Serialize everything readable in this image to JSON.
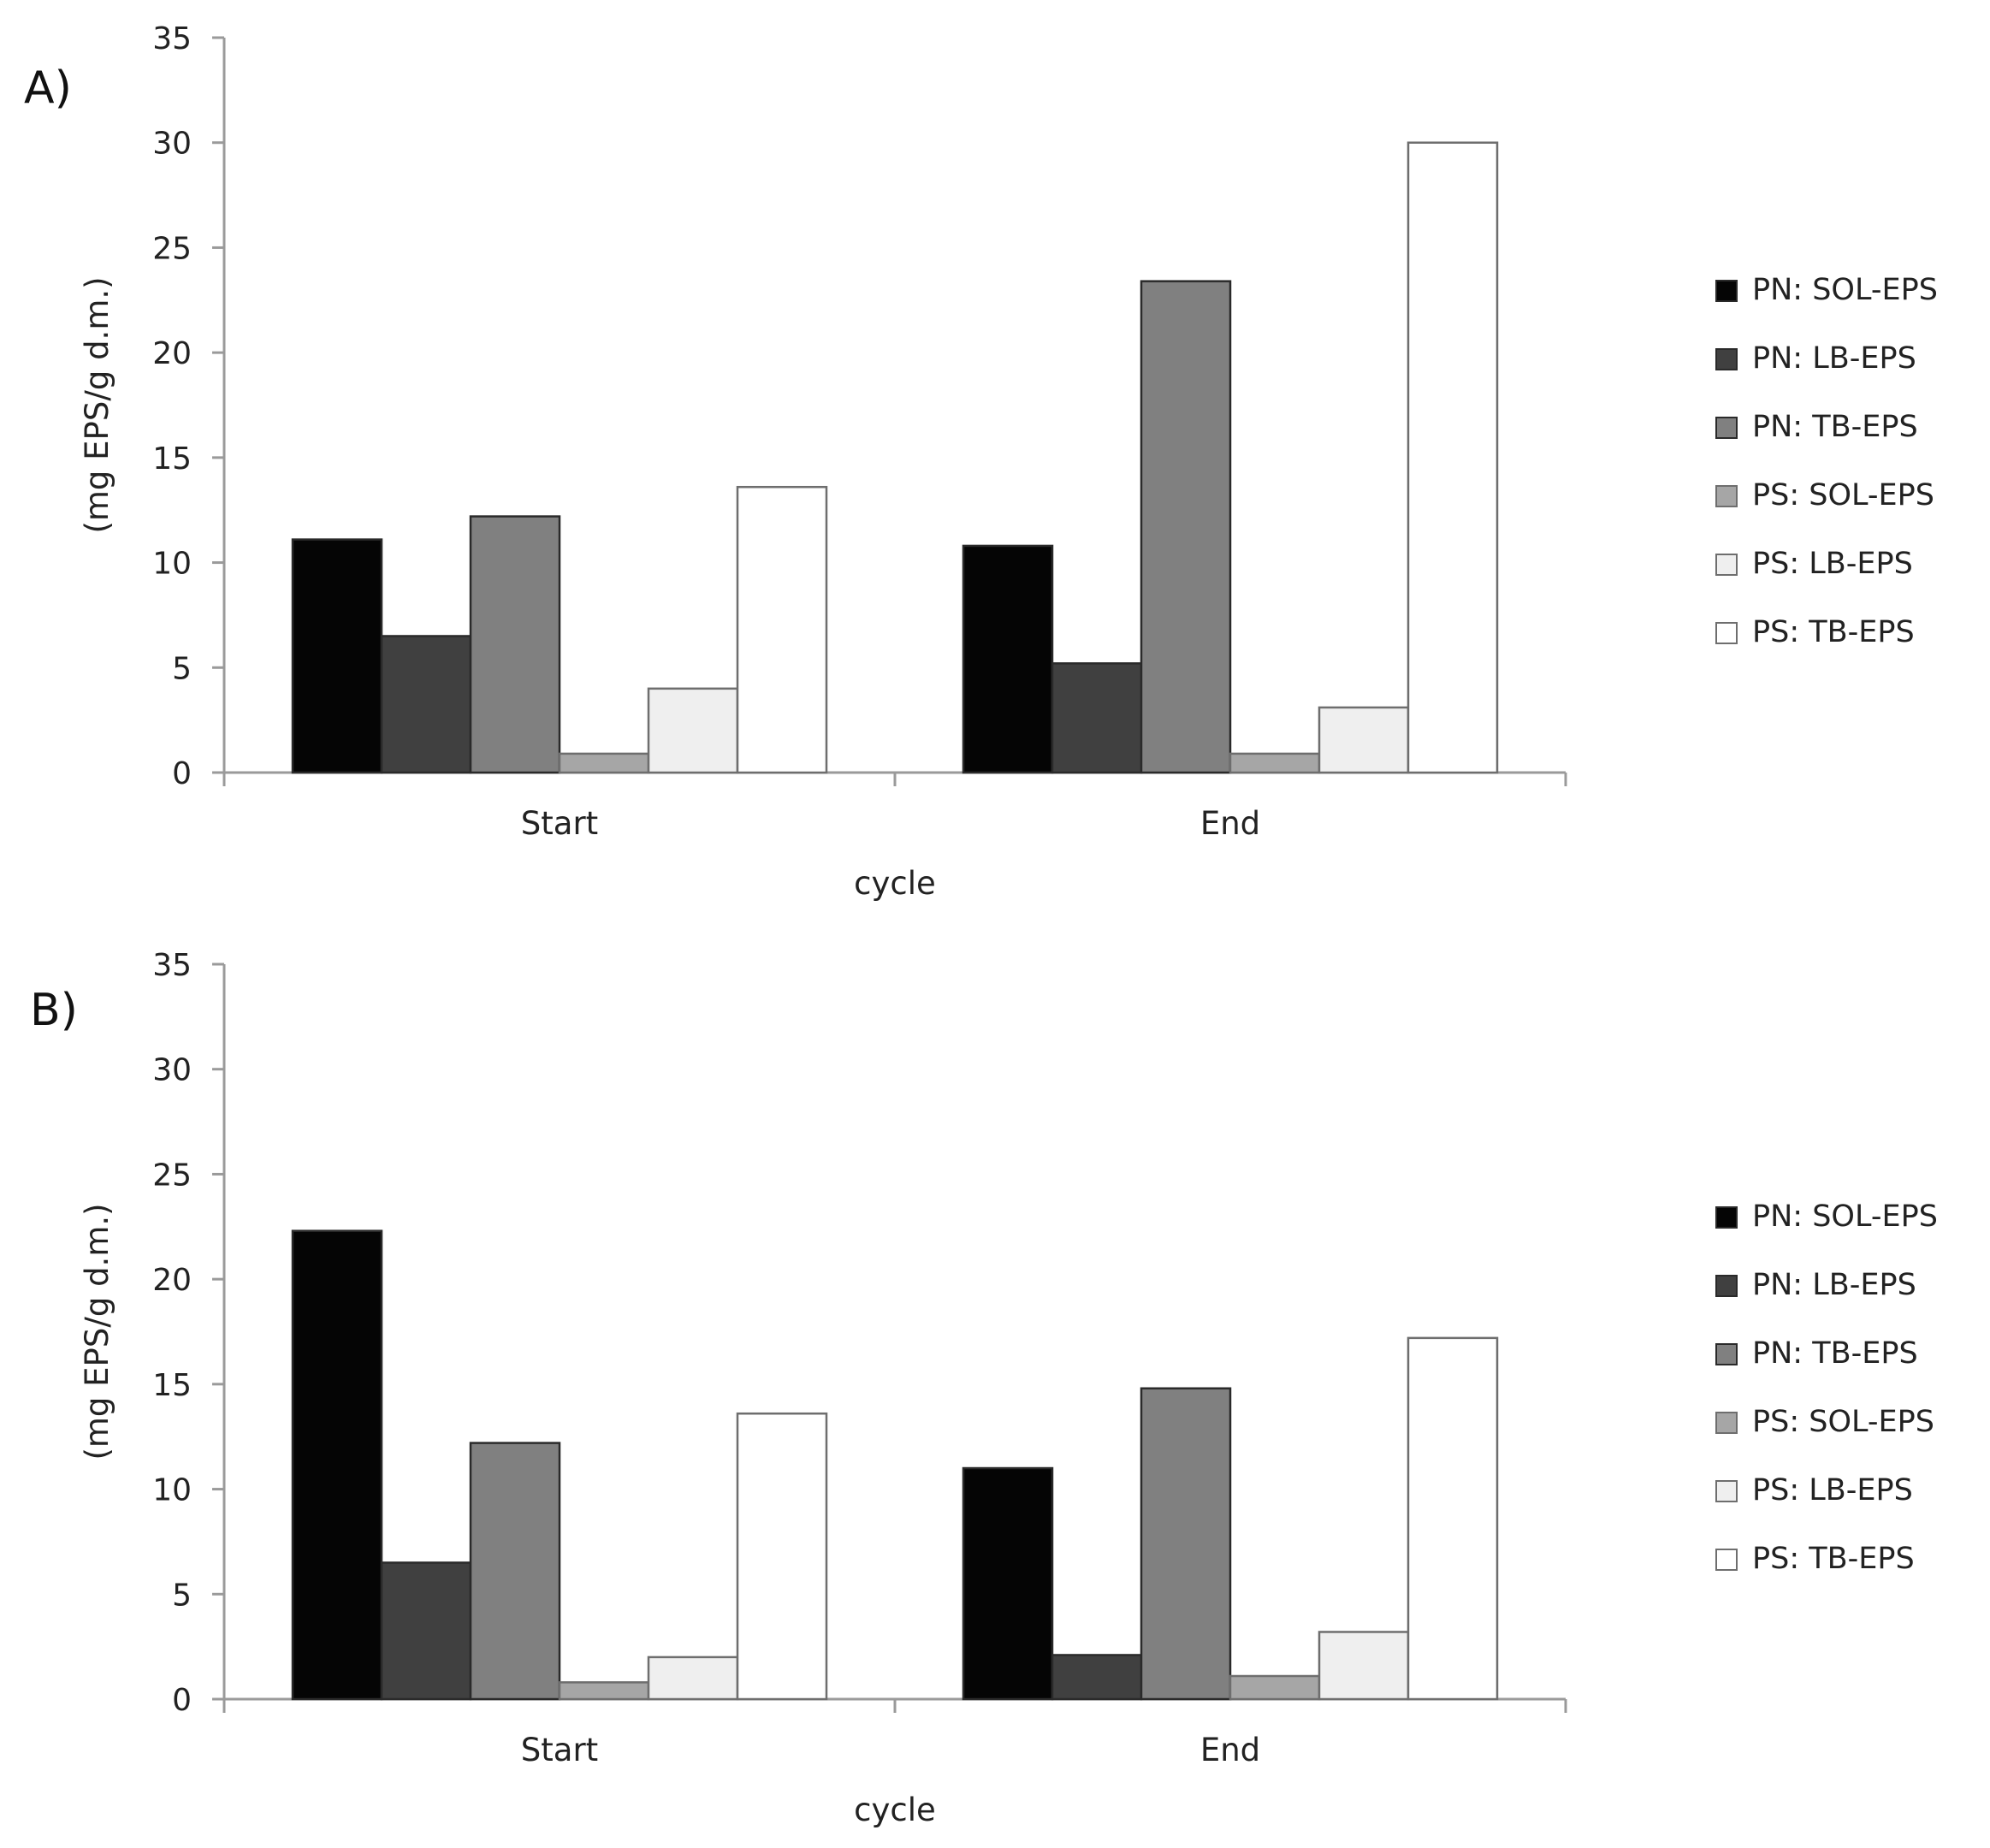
{
  "figure": {
    "series_names": [
      "PN: SOL-EPS",
      "PN: LB-EPS",
      "PN: TB-EPS",
      "PS: SOL-EPS",
      "PS: LB-EPS",
      "PS: TB-EPS"
    ],
    "series_colors": [
      "#050505",
      "#404040",
      "#808080",
      "#a6a6a6",
      "#efefef",
      "#ffffff"
    ]
  },
  "chart_data": [
    {
      "type": "bar",
      "panel_label": "A)",
      "categories": [
        "Start",
        "End"
      ],
      "xlabel": "cycle",
      "ylabel": "(mg EPS/g d.m.)",
      "ylim": [
        0,
        35
      ],
      "yticks": [
        0,
        5,
        10,
        15,
        20,
        25,
        30,
        35
      ],
      "legend_position": "right",
      "series": [
        {
          "name": "PN: SOL-EPS",
          "values": [
            11.1,
            10.8
          ]
        },
        {
          "name": "PN: LB-EPS",
          "values": [
            6.5,
            5.2
          ]
        },
        {
          "name": "PN: TB-EPS",
          "values": [
            12.2,
            23.4
          ]
        },
        {
          "name": "PS: SOL-EPS",
          "values": [
            0.9,
            0.9
          ]
        },
        {
          "name": "PS: LB-EPS",
          "values": [
            4.0,
            3.1
          ]
        },
        {
          "name": "PS: TB-EPS",
          "values": [
            13.6,
            30.0
          ]
        }
      ]
    },
    {
      "type": "bar",
      "panel_label": "B)",
      "categories": [
        "Start",
        "End"
      ],
      "xlabel": "cycle",
      "ylabel": "(mg EPS/g d.m.)",
      "ylim": [
        0,
        35
      ],
      "yticks": [
        0,
        5,
        10,
        15,
        20,
        25,
        30,
        35
      ],
      "legend_position": "right",
      "series": [
        {
          "name": "PN: SOL-EPS",
          "values": [
            22.3,
            11.0
          ]
        },
        {
          "name": "PN: LB-EPS",
          "values": [
            6.5,
            2.1
          ]
        },
        {
          "name": "PN: TB-EPS",
          "values": [
            12.2,
            14.8
          ]
        },
        {
          "name": "PS: SOL-EPS",
          "values": [
            0.8,
            1.1
          ]
        },
        {
          "name": "PS: LB-EPS",
          "values": [
            2.0,
            3.2
          ]
        },
        {
          "name": "PS: TB-EPS",
          "values": [
            13.6,
            17.2
          ]
        }
      ]
    }
  ]
}
